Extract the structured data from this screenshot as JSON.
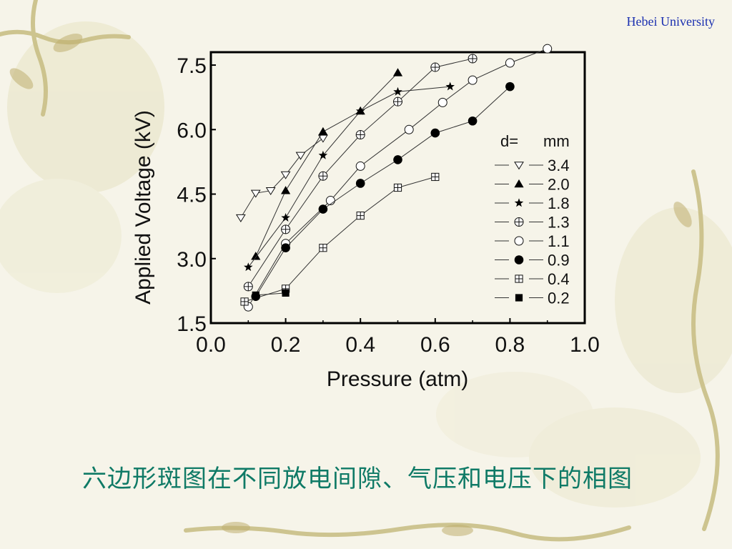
{
  "header": {
    "institution": "Hebei University"
  },
  "caption": "六边形斑图在不同放电间隙、气压和电压下的相图",
  "colors": {
    "caption": "#0f7a66",
    "header": "#1a2fb0",
    "background": "#f6f4e9"
  },
  "chart_data": {
    "type": "scatter",
    "title": "",
    "xlabel": "Pressure (atm)",
    "ylabel": "Applied Voltage (kV)",
    "xlim": [
      0.0,
      1.0
    ],
    "ylim": [
      1.5,
      7.8
    ],
    "xticks": [
      "0.0",
      "0.2",
      "0.4",
      "0.6",
      "0.8",
      "1.0"
    ],
    "yticks": [
      "1.5",
      "3.0",
      "4.5",
      "6.0",
      "7.5"
    ],
    "xtick_values": [
      0.0,
      0.2,
      0.4,
      0.6,
      0.8,
      1.0
    ],
    "ytick_values": [
      1.5,
      3.0,
      4.5,
      6.0,
      7.5
    ],
    "grid": false,
    "legend_placement": "right",
    "legend_title_left": "d=",
    "legend_title_right": "mm",
    "series": [
      {
        "name": "3.4",
        "marker": "triangle-down-open",
        "points": [
          [
            0.08,
            3.95
          ],
          [
            0.12,
            4.52
          ],
          [
            0.16,
            4.58
          ],
          [
            0.2,
            4.95
          ],
          [
            0.24,
            5.4
          ],
          [
            0.3,
            5.8
          ]
        ]
      },
      {
        "name": "2.0",
        "marker": "triangle-up-filled",
        "points": [
          [
            0.12,
            3.05
          ],
          [
            0.2,
            4.58
          ],
          [
            0.3,
            5.95
          ],
          [
            0.4,
            6.43
          ],
          [
            0.5,
            7.32
          ]
        ]
      },
      {
        "name": "1.8",
        "marker": "star-filled",
        "points": [
          [
            0.1,
            2.8
          ],
          [
            0.2,
            3.95
          ],
          [
            0.3,
            5.4
          ],
          [
            0.4,
            6.43
          ],
          [
            0.5,
            6.88
          ],
          [
            0.64,
            7.0
          ]
        ]
      },
      {
        "name": "1.3",
        "marker": "circle-plus",
        "points": [
          [
            0.1,
            2.35
          ],
          [
            0.2,
            3.68
          ],
          [
            0.3,
            4.92
          ],
          [
            0.4,
            5.88
          ],
          [
            0.5,
            6.65
          ],
          [
            0.6,
            7.45
          ],
          [
            0.7,
            7.65
          ]
        ]
      },
      {
        "name": "1.1",
        "marker": "circle-open",
        "points": [
          [
            0.1,
            1.88
          ],
          [
            0.2,
            3.35
          ],
          [
            0.32,
            4.35
          ],
          [
            0.4,
            5.15
          ],
          [
            0.53,
            6.0
          ],
          [
            0.62,
            6.63
          ],
          [
            0.7,
            7.15
          ],
          [
            0.8,
            7.55
          ],
          [
            0.9,
            7.88
          ]
        ]
      },
      {
        "name": "0.9",
        "marker": "circle-filled",
        "points": [
          [
            0.12,
            2.12
          ],
          [
            0.2,
            3.25
          ],
          [
            0.3,
            4.15
          ],
          [
            0.4,
            4.75
          ],
          [
            0.5,
            5.3
          ],
          [
            0.6,
            5.92
          ],
          [
            0.7,
            6.2
          ],
          [
            0.8,
            7.0
          ]
        ]
      },
      {
        "name": "0.4",
        "marker": "square-plus",
        "points": [
          [
            0.09,
            2.0
          ],
          [
            0.2,
            2.3
          ],
          [
            0.3,
            3.25
          ],
          [
            0.4,
            4.0
          ],
          [
            0.5,
            4.65
          ],
          [
            0.6,
            4.9
          ]
        ]
      },
      {
        "name": "0.2",
        "marker": "square-filled",
        "points": [
          [
            0.12,
            2.15
          ],
          [
            0.2,
            2.2
          ]
        ]
      }
    ]
  }
}
